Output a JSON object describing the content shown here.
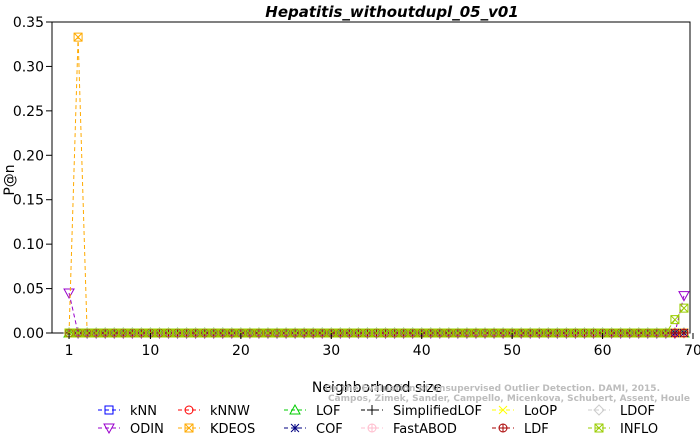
{
  "chart_data": {
    "type": "line",
    "title": "Hepatitis_withoutdupl_05_v01",
    "xlabel": "Neighborhood size",
    "ylabel": "P@n",
    "xlim": [
      0,
      70
    ],
    "ylim": [
      0,
      0.35
    ],
    "x_ticks": [
      1,
      10,
      20,
      30,
      40,
      50,
      60,
      70
    ],
    "x_tick_labels": [
      "1",
      "10",
      "20",
      "30",
      "40",
      "50",
      "60",
      "70"
    ],
    "y_ticks": [
      0,
      0.05,
      0.1,
      0.15,
      0.2,
      0.25,
      0.3,
      0.35
    ],
    "y_tick_labels": [
      "0.00",
      "0.05",
      "0.10",
      "0.15",
      "0.20",
      "0.25",
      "0.30",
      "0.35"
    ],
    "x_range": [
      1,
      69
    ],
    "legend_position": "bottom",
    "series": [
      {
        "name": "kNN",
        "color": "#0000ff",
        "marker": "square",
        "values": [],
        "default": 0
      },
      {
        "name": "kNNW",
        "color": "#ff0000",
        "marker": "circle",
        "values": [],
        "default": 0
      },
      {
        "name": "LOF",
        "color": "#00cc00",
        "marker": "triangle-up",
        "values": [],
        "default": 0
      },
      {
        "name": "SimplifiedLOF",
        "color": "#000000",
        "marker": "plus",
        "values": [],
        "default": 0
      },
      {
        "name": "LoOP",
        "color": "#ffff00",
        "marker": "x",
        "values": [],
        "default": 0
      },
      {
        "name": "LDOF",
        "color": "#cccccc",
        "marker": "diamond",
        "values": [],
        "default": 0
      },
      {
        "name": "ODIN",
        "color": "#9900cc",
        "marker": "triangle-down",
        "values": [
          [
            1,
            0.045
          ],
          [
            2,
            0
          ],
          [
            69,
            0.042
          ]
        ],
        "default": 0
      },
      {
        "name": "KDEOS",
        "color": "#ffaa00",
        "marker": "square-x",
        "values": [
          [
            1,
            0
          ],
          [
            2,
            0.333
          ],
          [
            3,
            0
          ]
        ],
        "default": 0
      },
      {
        "name": "COF",
        "color": "#000080",
        "marker": "asterisk",
        "values": [],
        "default": 0
      },
      {
        "name": "FastABOD",
        "color": "#ffbbcc",
        "marker": "circle-plus",
        "values": [],
        "default": 0
      },
      {
        "name": "LDF",
        "color": "#aa0000",
        "marker": "circle-plus",
        "values": [],
        "default": 0
      },
      {
        "name": "INFLO",
        "color": "#99cc00",
        "marker": "square-x",
        "values": [
          [
            67,
            0
          ],
          [
            68,
            0.015
          ],
          [
            69,
            0.028
          ]
        ],
        "default": 0
      }
    ],
    "legend": [
      {
        "row": 0,
        "col": 0,
        "series": 0
      },
      {
        "row": 0,
        "col": 1,
        "series": 1
      },
      {
        "row": 0,
        "col": 2,
        "series": 2
      },
      {
        "row": 0,
        "col": 3,
        "series": 3
      },
      {
        "row": 0,
        "col": 4,
        "series": 4
      },
      {
        "row": 0,
        "col": 5,
        "series": 5
      },
      {
        "row": 1,
        "col": 0,
        "series": 6
      },
      {
        "row": 1,
        "col": 1,
        "series": 7
      },
      {
        "row": 1,
        "col": 2,
        "series": 8
      },
      {
        "row": 1,
        "col": 3,
        "series": 9
      },
      {
        "row": 1,
        "col": 4,
        "series": 10
      },
      {
        "row": 1,
        "col": 5,
        "series": 11
      }
    ],
    "watermark": [
      "Campos, Zimek, Sander, Campello, Micenkova, Schubert, Assent, Houle",
      "On the Evaluation of Unsupervised Outlier Detection. DAMI, 2015."
    ]
  }
}
